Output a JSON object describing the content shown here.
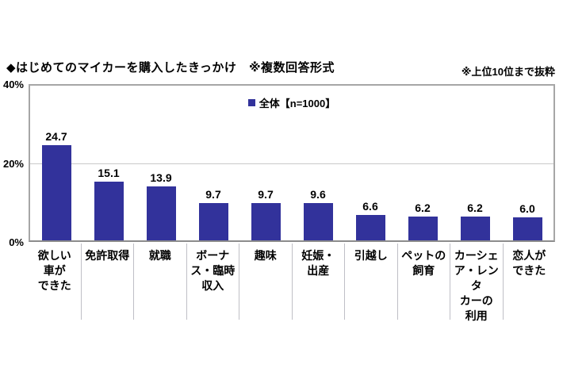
{
  "header": {
    "title": "◆はじめてのマイカーを購入したきっかけ　※複数回答形式",
    "note": "※上位10位まで抜粋"
  },
  "legend": {
    "label": "全体【n=1000】",
    "marker_color": "#32329B"
  },
  "y_axis": {
    "tick_top": "40%",
    "tick_mid": "20%",
    "tick_bottom": "0%"
  },
  "chart_data": {
    "type": "bar",
    "title": "はじめてのマイカーを購入したきっかけ（※複数回答形式）",
    "note": "※上位10位まで抜粋",
    "legend_entries": [
      "全体【n=1000】"
    ],
    "legend_position": "top-center inside plot",
    "categories": [
      "欲しい車ができた",
      "免許取得",
      "就職",
      "ボーナス・臨時収入",
      "趣味",
      "妊娠・出産",
      "引越し",
      "ペットの飼育",
      "カーシェア・レンタカーの利用",
      "恋人ができた"
    ],
    "values": [
      24.7,
      15.1,
      13.9,
      9.7,
      9.7,
      9.6,
      6.6,
      6.2,
      6.2,
      6.0
    ],
    "value_labels": [
      "24.7",
      "15.1",
      "13.9",
      "9.7",
      "9.7",
      "9.6",
      "6.6",
      "6.2",
      "6.2",
      "6.0"
    ],
    "label_lines": [
      "欲しい\n車が\nできた",
      "免許取得",
      "就職",
      "ボーナ\nス・臨時\n収入",
      "趣味",
      "妊娠・\n出産",
      "引越し",
      "ペットの\n飼育",
      "カーシェ\nア・レンタ\nカーの\n利用",
      "恋人が\nできた"
    ],
    "ylim": [
      0,
      40
    ],
    "yticks": [
      "40%",
      "20%",
      "0%"
    ],
    "grid": "horizontal gridline at 20% only",
    "bar_color": "#32329B",
    "unit": "%"
  }
}
